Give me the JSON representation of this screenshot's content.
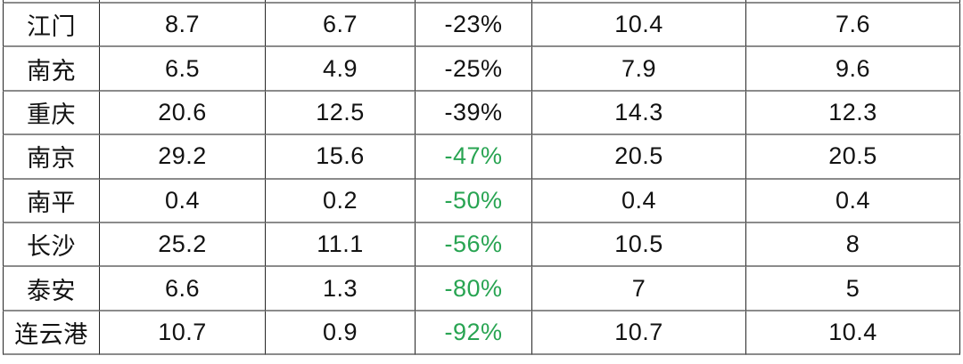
{
  "table": {
    "description_note": "cropped table, header row not visible",
    "columns": [
      "city",
      "value_a",
      "value_b",
      "pct_change",
      "value_c",
      "value_d"
    ],
    "rows": [
      {
        "city": "江门",
        "value_a": "8.7",
        "value_b": "6.7",
        "pct_change": "-23%",
        "pct_green": false,
        "value_c": "10.4",
        "value_d": "7.6"
      },
      {
        "city": "南充",
        "value_a": "6.5",
        "value_b": "4.9",
        "pct_change": "-25%",
        "pct_green": false,
        "value_c": "7.9",
        "value_d": "9.6"
      },
      {
        "city": "重庆",
        "value_a": "20.6",
        "value_b": "12.5",
        "pct_change": "-39%",
        "pct_green": false,
        "value_c": "14.3",
        "value_d": "12.3"
      },
      {
        "city": "南京",
        "value_a": "29.2",
        "value_b": "15.6",
        "pct_change": "-47%",
        "pct_green": true,
        "value_c": "20.5",
        "value_d": "20.5"
      },
      {
        "city": "南平",
        "value_a": "0.4",
        "value_b": "0.2",
        "pct_change": "-50%",
        "pct_green": true,
        "value_c": "0.4",
        "value_d": "0.4"
      },
      {
        "city": "长沙",
        "value_a": "25.2",
        "value_b": "11.1",
        "pct_change": "-56%",
        "pct_green": true,
        "value_c": "10.5",
        "value_d": "8"
      },
      {
        "city": "泰安",
        "value_a": "6.6",
        "value_b": "1.3",
        "pct_change": "-80%",
        "pct_green": true,
        "value_c": "7",
        "value_d": "5"
      },
      {
        "city": "连云港",
        "value_a": "10.7",
        "value_b": "0.9",
        "pct_change": "-92%",
        "pct_green": true,
        "value_c": "10.7",
        "value_d": "10.4"
      }
    ],
    "colors": {
      "text": "#121212",
      "pct_highlight_green": "#28a452",
      "border_vertical": "#262626",
      "border_horizontal": "#8b8b8b",
      "background": "#ffffff"
    }
  }
}
